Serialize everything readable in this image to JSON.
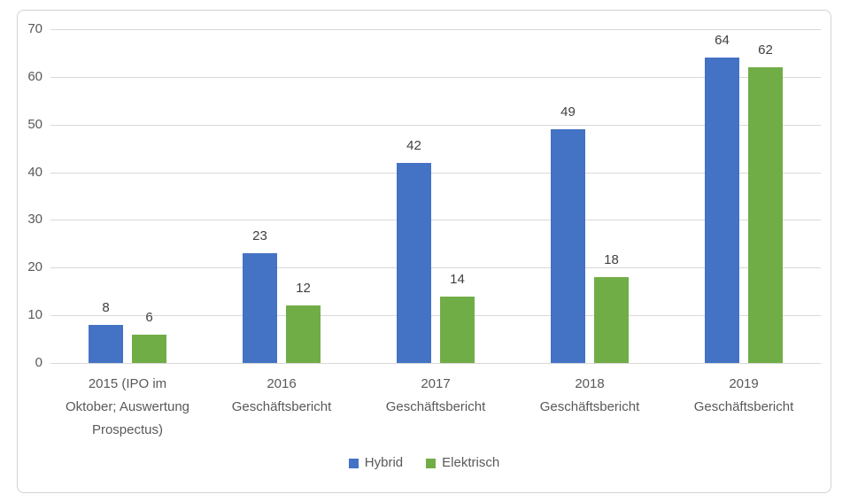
{
  "chart_data": {
    "type": "bar",
    "title": "",
    "xlabel": "",
    "ylabel": "",
    "categories": [
      "2015 (IPO im\nOktober; Auswertung\nProspectus)",
      "2016\nGeschäftsbericht",
      "2017\nGeschäftsbericht",
      "2018\nGeschäftsbericht",
      "2019\nGeschäftsbericht"
    ],
    "series": [
      {
        "name": "Hybrid",
        "color": "#4472C4",
        "values": [
          8,
          23,
          42,
          49,
          64
        ]
      },
      {
        "name": "Elektrisch",
        "color": "#70AD47",
        "values": [
          6,
          12,
          14,
          18,
          62
        ]
      }
    ],
    "ylim": [
      0,
      70
    ],
    "yticks": [
      0,
      10,
      20,
      30,
      40,
      50,
      60,
      70
    ],
    "grid": true,
    "data_labels": true,
    "legend_position": "bottom"
  },
  "colors": {
    "background": "#FFFFFF",
    "frame_border": "#D2D2D2",
    "gridline": "#D9D9D9",
    "axis_label": "#595959",
    "data_label": "#404040",
    "hybrid": "#4472C4",
    "elektrisch": "#70AD47"
  }
}
